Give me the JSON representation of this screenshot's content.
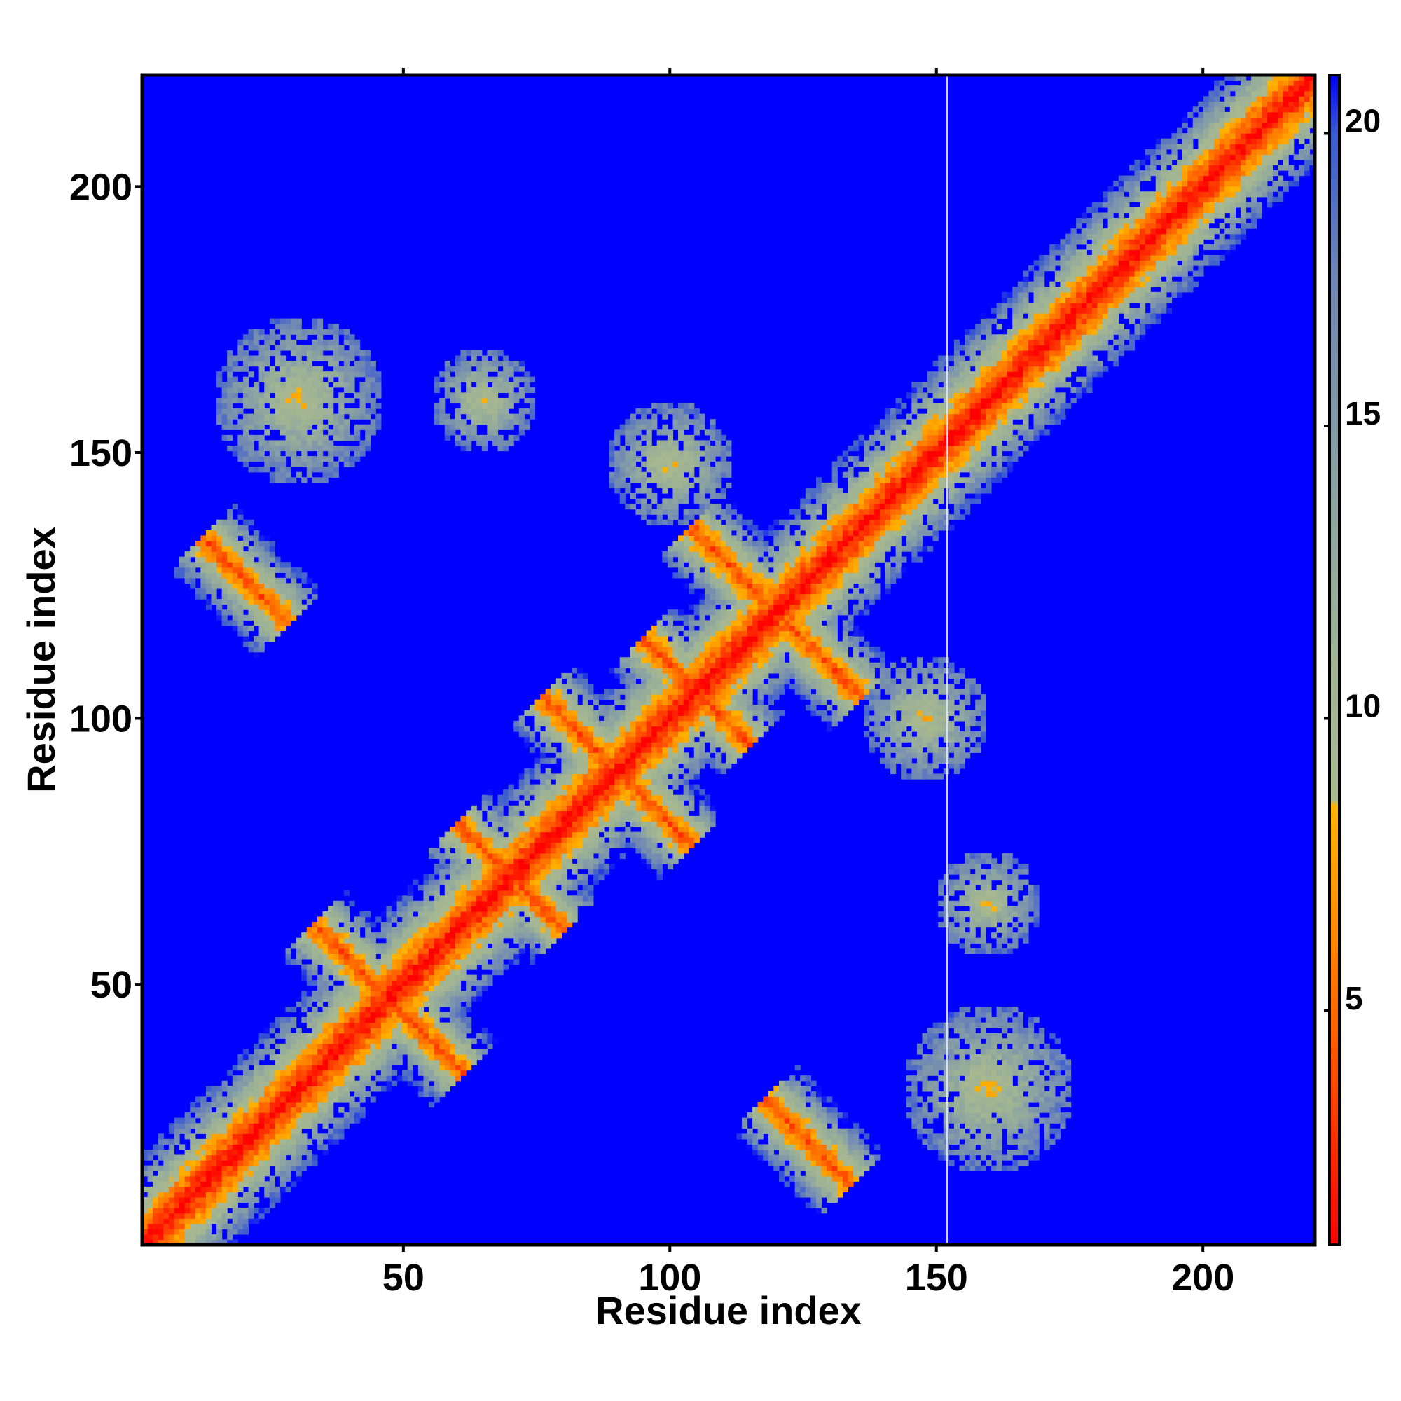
{
  "chart_data": {
    "type": "heatmap",
    "title": "",
    "xlabel": "Residue index",
    "ylabel": "Residue index",
    "xlim": [
      1,
      221
    ],
    "ylim": [
      1,
      221
    ],
    "x_ticks": [
      50,
      100,
      150,
      200
    ],
    "y_ticks": [
      50,
      100,
      150,
      200
    ],
    "colorbar": {
      "ticks": [
        5,
        10,
        15,
        20
      ],
      "range": [
        1,
        21
      ],
      "stops": [
        {
          "value": 1,
          "color": "#ff0000"
        },
        {
          "value": 3,
          "color": "#ff3300"
        },
        {
          "value": 5,
          "color": "#ff6a00"
        },
        {
          "value": 7,
          "color": "#ff9900"
        },
        {
          "value": 8.5,
          "color": "#ffb400"
        },
        {
          "value": 8.6,
          "color": "#a9b98f"
        },
        {
          "value": 11,
          "color": "#9fb394"
        },
        {
          "value": 14,
          "color": "#8aa2a3"
        },
        {
          "value": 17.5,
          "color": "#6f87b4"
        },
        {
          "value": 20,
          "color": "#3a5bd0"
        },
        {
          "value": 21,
          "color": "#0000ff"
        }
      ]
    },
    "background_color": "#0000ff",
    "cell_value_meaning": "distance",
    "vertical_line_x": 152,
    "features": {
      "diagonal": {
        "width": 3
      },
      "antiparallel_strands": [
        {
          "center": [
            47,
            47
          ],
          "half_length": 14
        },
        {
          "center": [
            90,
            90
          ],
          "half_length": 14
        },
        {
          "center": [
            105,
            105
          ],
          "half_length": 10
        },
        {
          "center": [
            120,
            120
          ],
          "half_length": 16
        },
        {
          "center": [
            70,
            70
          ],
          "half_length": 10
        },
        {
          "center": [
            20,
            126
          ],
          "half_length": 8
        },
        {
          "center": [
            126,
            20
          ],
          "half_length": 8
        }
      ],
      "contact_regions": [
        {
          "center": [
            30,
            160
          ],
          "radius": 16
        },
        {
          "center": [
            160,
            30
          ],
          "radius": 16
        },
        {
          "center": [
            160,
            65
          ],
          "radius": 10
        },
        {
          "center": [
            65,
            160
          ],
          "radius": 10
        },
        {
          "center": [
            100,
            148
          ],
          "radius": 12
        },
        {
          "center": [
            148,
            100
          ],
          "radius": 12
        }
      ]
    }
  }
}
